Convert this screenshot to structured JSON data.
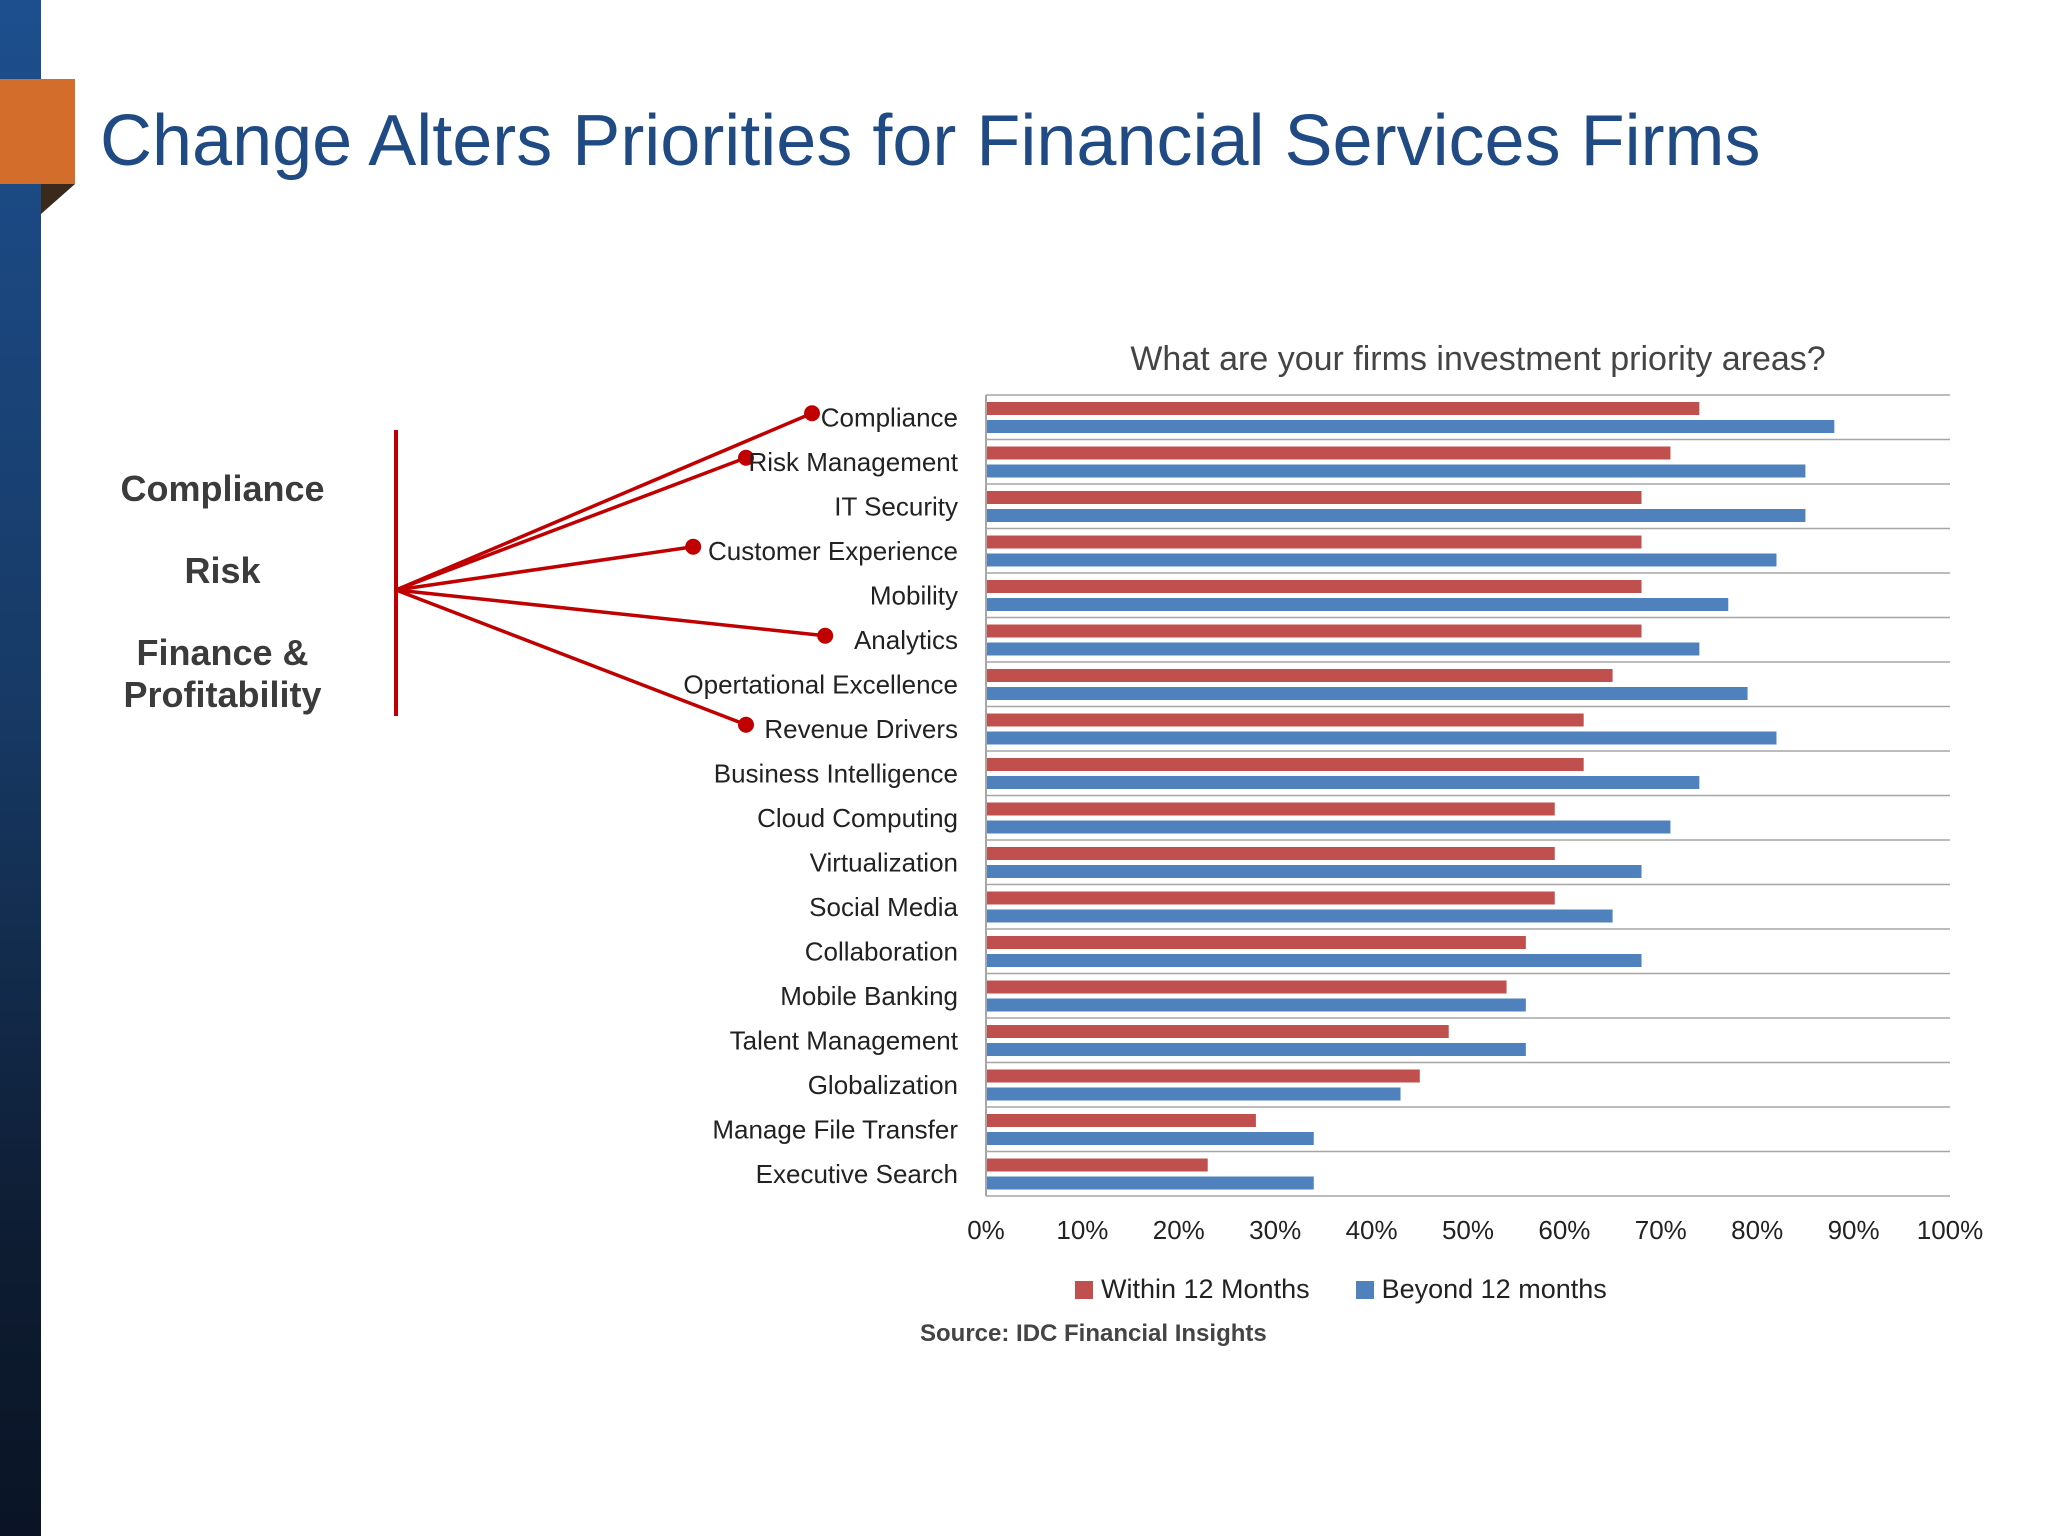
{
  "slide": {
    "title": "Change Alters Priorities for Financial Services Firms",
    "themes": [
      "Compliance",
      "Risk",
      "Finance & Profitability"
    ],
    "source": "Source: IDC Financial Insights"
  },
  "colors": {
    "within": "#c0504d",
    "beyond": "#4f81bd",
    "connector": "#c00000",
    "title": "#1f4a84"
  },
  "highlighted_categories": [
    "Compliance",
    "Risk Management",
    "Customer Experience",
    "Analytics",
    "Revenue Drivers"
  ],
  "chart_data": {
    "type": "bar",
    "orientation": "horizontal",
    "title": "What are your firms investment priority areas?",
    "categories": [
      "Compliance",
      "Risk Management",
      "IT Security",
      "Customer Experience",
      "Mobility",
      "Analytics",
      "Opertational Excellence",
      "Revenue Drivers",
      "Business Intelligence",
      "Cloud Computing",
      "Virtualization",
      "Social Media",
      "Collaboration",
      "Mobile Banking",
      "Talent Management",
      "Globalization",
      "Manage File Transfer",
      "Executive Search"
    ],
    "series": [
      {
        "name": "Within 12 Months",
        "values": [
          74,
          71,
          68,
          68,
          68,
          68,
          65,
          62,
          62,
          59,
          59,
          59,
          56,
          54,
          48,
          45,
          28,
          23
        ]
      },
      {
        "name": "Beyond 12 months",
        "values": [
          88,
          85,
          85,
          82,
          77,
          74,
          79,
          82,
          74,
          71,
          68,
          65,
          68,
          56,
          56,
          43,
          34,
          34
        ]
      }
    ],
    "xlim": [
      0,
      100
    ],
    "xticks": [
      "0%",
      "10%",
      "20%",
      "30%",
      "40%",
      "50%",
      "60%",
      "70%",
      "80%",
      "90%",
      "100%"
    ],
    "xlabel": "",
    "ylabel": "",
    "grid": "horizontal",
    "legend": "bottom"
  }
}
